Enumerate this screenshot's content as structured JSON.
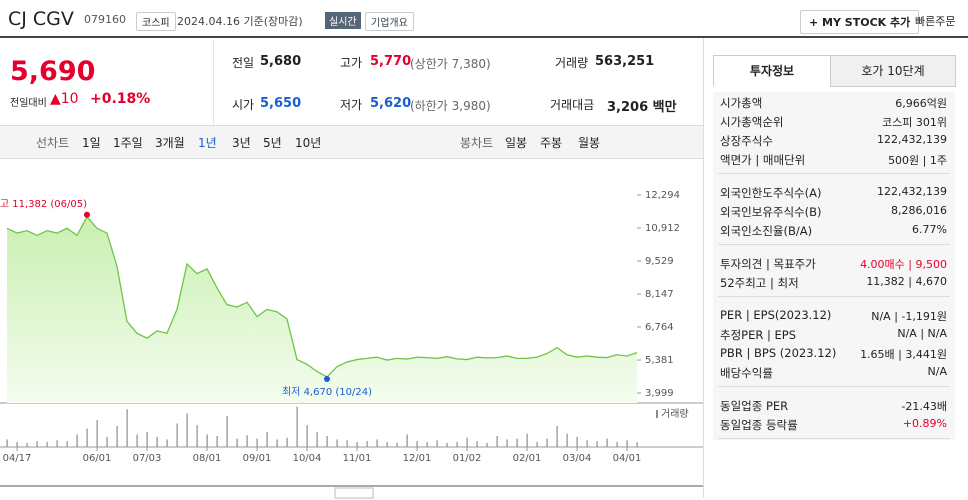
{
  "header": {
    "name": "CJ CGV",
    "code": "079160",
    "market": "코스피",
    "date": "2024.04.16 기준(장마감)",
    "realtime": "실시간",
    "overview": "기업개요",
    "mystock": "+ MY STOCK 추가",
    "quick_order": "빠른주문"
  },
  "quote": {
    "price": "5,690",
    "change_label": "전일대비",
    "change": "▲10",
    "change_rate": "+0.18%",
    "fields": [
      {
        "label": "전일",
        "value": "5,680"
      },
      {
        "label": "고가",
        "value": "5,770",
        "note": "(상한가 7,380)"
      },
      {
        "label": "거래량",
        "value": "563,251"
      },
      {
        "label": "시가",
        "value": "5,650"
      },
      {
        "label": "저가",
        "value": "5,620",
        "note": "(하한가 3,980)"
      },
      {
        "label": "거래대금",
        "value": "3,206 백만"
      }
    ]
  },
  "tabs": {
    "line_label": "선차트",
    "line_periods": [
      "1일",
      "1주일",
      "3개월",
      "1년",
      "3년",
      "5년",
      "10년"
    ],
    "selected": "1년",
    "candle_label": "봉차트",
    "candle_periods": [
      "일봉",
      "주봉",
      "월봉"
    ]
  },
  "chart_data": {
    "type": "line",
    "color": "#6cc644",
    "volume_color": "#8c8c8c",
    "categories": [
      null,
      "04/17",
      null,
      null,
      null,
      null,
      null,
      null,
      null,
      "06/01",
      null,
      null,
      null,
      null,
      "07/03",
      null,
      null,
      null,
      null,
      null,
      "08/01",
      null,
      null,
      null,
      null,
      "09/01",
      null,
      null,
      null,
      null,
      "10/04",
      null,
      null,
      null,
      null,
      "11/01",
      null,
      null,
      null,
      null,
      null,
      "12/01",
      null,
      null,
      null,
      null,
      "01/02",
      null,
      null,
      null,
      null,
      null,
      "02/01",
      null,
      null,
      null,
      null,
      "03/04",
      null,
      null,
      null,
      null,
      "04/01",
      null
    ],
    "values": [
      10900,
      10700,
      10800,
      10600,
      10800,
      10700,
      10900,
      10600,
      11382,
      10900,
      10700,
      9300,
      7000,
      6500,
      6300,
      6600,
      6500,
      7500,
      9400,
      9000,
      9200,
      8400,
      7700,
      7600,
      7800,
      7200,
      7500,
      7400,
      7100,
      5400,
      5200,
      4900,
      4670,
      5100,
      5300,
      5400,
      5450,
      5500,
      5380,
      5450,
      5420,
      5500,
      5480,
      5450,
      5520,
      5430,
      5400,
      5500,
      5470,
      5480,
      5550,
      5450,
      5450,
      5500,
      5650,
      5900,
      5600,
      5500,
      5550,
      5500,
      5480,
      5600,
      5550,
      5690
    ],
    "volume": [
      900000,
      600000,
      500000,
      700000,
      600000,
      800000,
      700000,
      1500000,
      2200000,
      3200000,
      1200000,
      2500000,
      4500000,
      1500000,
      1800000,
      1200000,
      900000,
      2800000,
      4000000,
      2600000,
      1500000,
      1300000,
      3700000,
      1000000,
      1400000,
      1000000,
      1800000,
      900000,
      1100000,
      4800000,
      2600000,
      1800000,
      1300000,
      900000,
      800000,
      600000,
      700000,
      900000,
      600000,
      500000,
      1500000,
      700000,
      600000,
      800000,
      500000,
      600000,
      1100000,
      700000,
      500000,
      1300000,
      900000,
      1000000,
      1600000,
      600000,
      1000000,
      2500000,
      1600000,
      1200000,
      800000,
      700000,
      1000000,
      600000,
      800000,
      563251
    ],
    "volume_ylim": [
      0,
      5000000
    ],
    "volume_label": "거래량",
    "ylim": [
      3999,
      12294
    ],
    "yticks": [
      {
        "value": 3999,
        "label": "3,999"
      },
      {
        "value": 5381,
        "label": "5,381"
      },
      {
        "value": 6764,
        "label": "6,764"
      },
      {
        "value": 8147,
        "label": "8,147"
      },
      {
        "value": 9529,
        "label": "9,529"
      },
      {
        "value": 10912,
        "label": "10,912"
      },
      {
        "value": 12294,
        "label": "12,294"
      }
    ],
    "high_label": "최고 11,382 (06/05)",
    "low_label": "최저 4,670 (10/24)"
  },
  "side": {
    "tabs": [
      "투자정보",
      "호가 10단계"
    ],
    "groups": [
      [
        {
          "label": "시가총액",
          "value": "6,966억원"
        },
        {
          "label": "시가총액순위",
          "value": "코스피 301위"
        },
        {
          "label": "상장주식수",
          "value": "122,432,139"
        },
        {
          "label": "액면가 | 매매단위",
          "value": "500원 | 1주"
        }
      ],
      [
        {
          "label": "외국인한도주식수(A)",
          "value": "122,432,139"
        },
        {
          "label": "외국인보유주식수(B)",
          "value": "8,286,016"
        },
        {
          "label": "외국인소진율(B/A)",
          "value": "6.77%"
        }
      ],
      [
        {
          "label": "투자의견 | 목표주가",
          "value": "4.00매수 | 9,500"
        },
        {
          "label": "52주최고 | 최저",
          "value": "11,382 | 4,670"
        }
      ],
      [
        {
          "label": "PER | EPS(2023.12)",
          "value": "N/A | -1,191원"
        },
        {
          "label": "추정PER | EPS",
          "value": "N/A | N/A"
        },
        {
          "label": "PBR | BPS (2023.12)",
          "value": "1.65배 | 3,441원"
        },
        {
          "label": "배당수익률",
          "value": "N/A"
        }
      ],
      [
        {
          "label": "동일업종 PER",
          "value": "-21.43배"
        },
        {
          "label": "동일업종 등락률",
          "value": "+0.89%"
        }
      ]
    ]
  }
}
